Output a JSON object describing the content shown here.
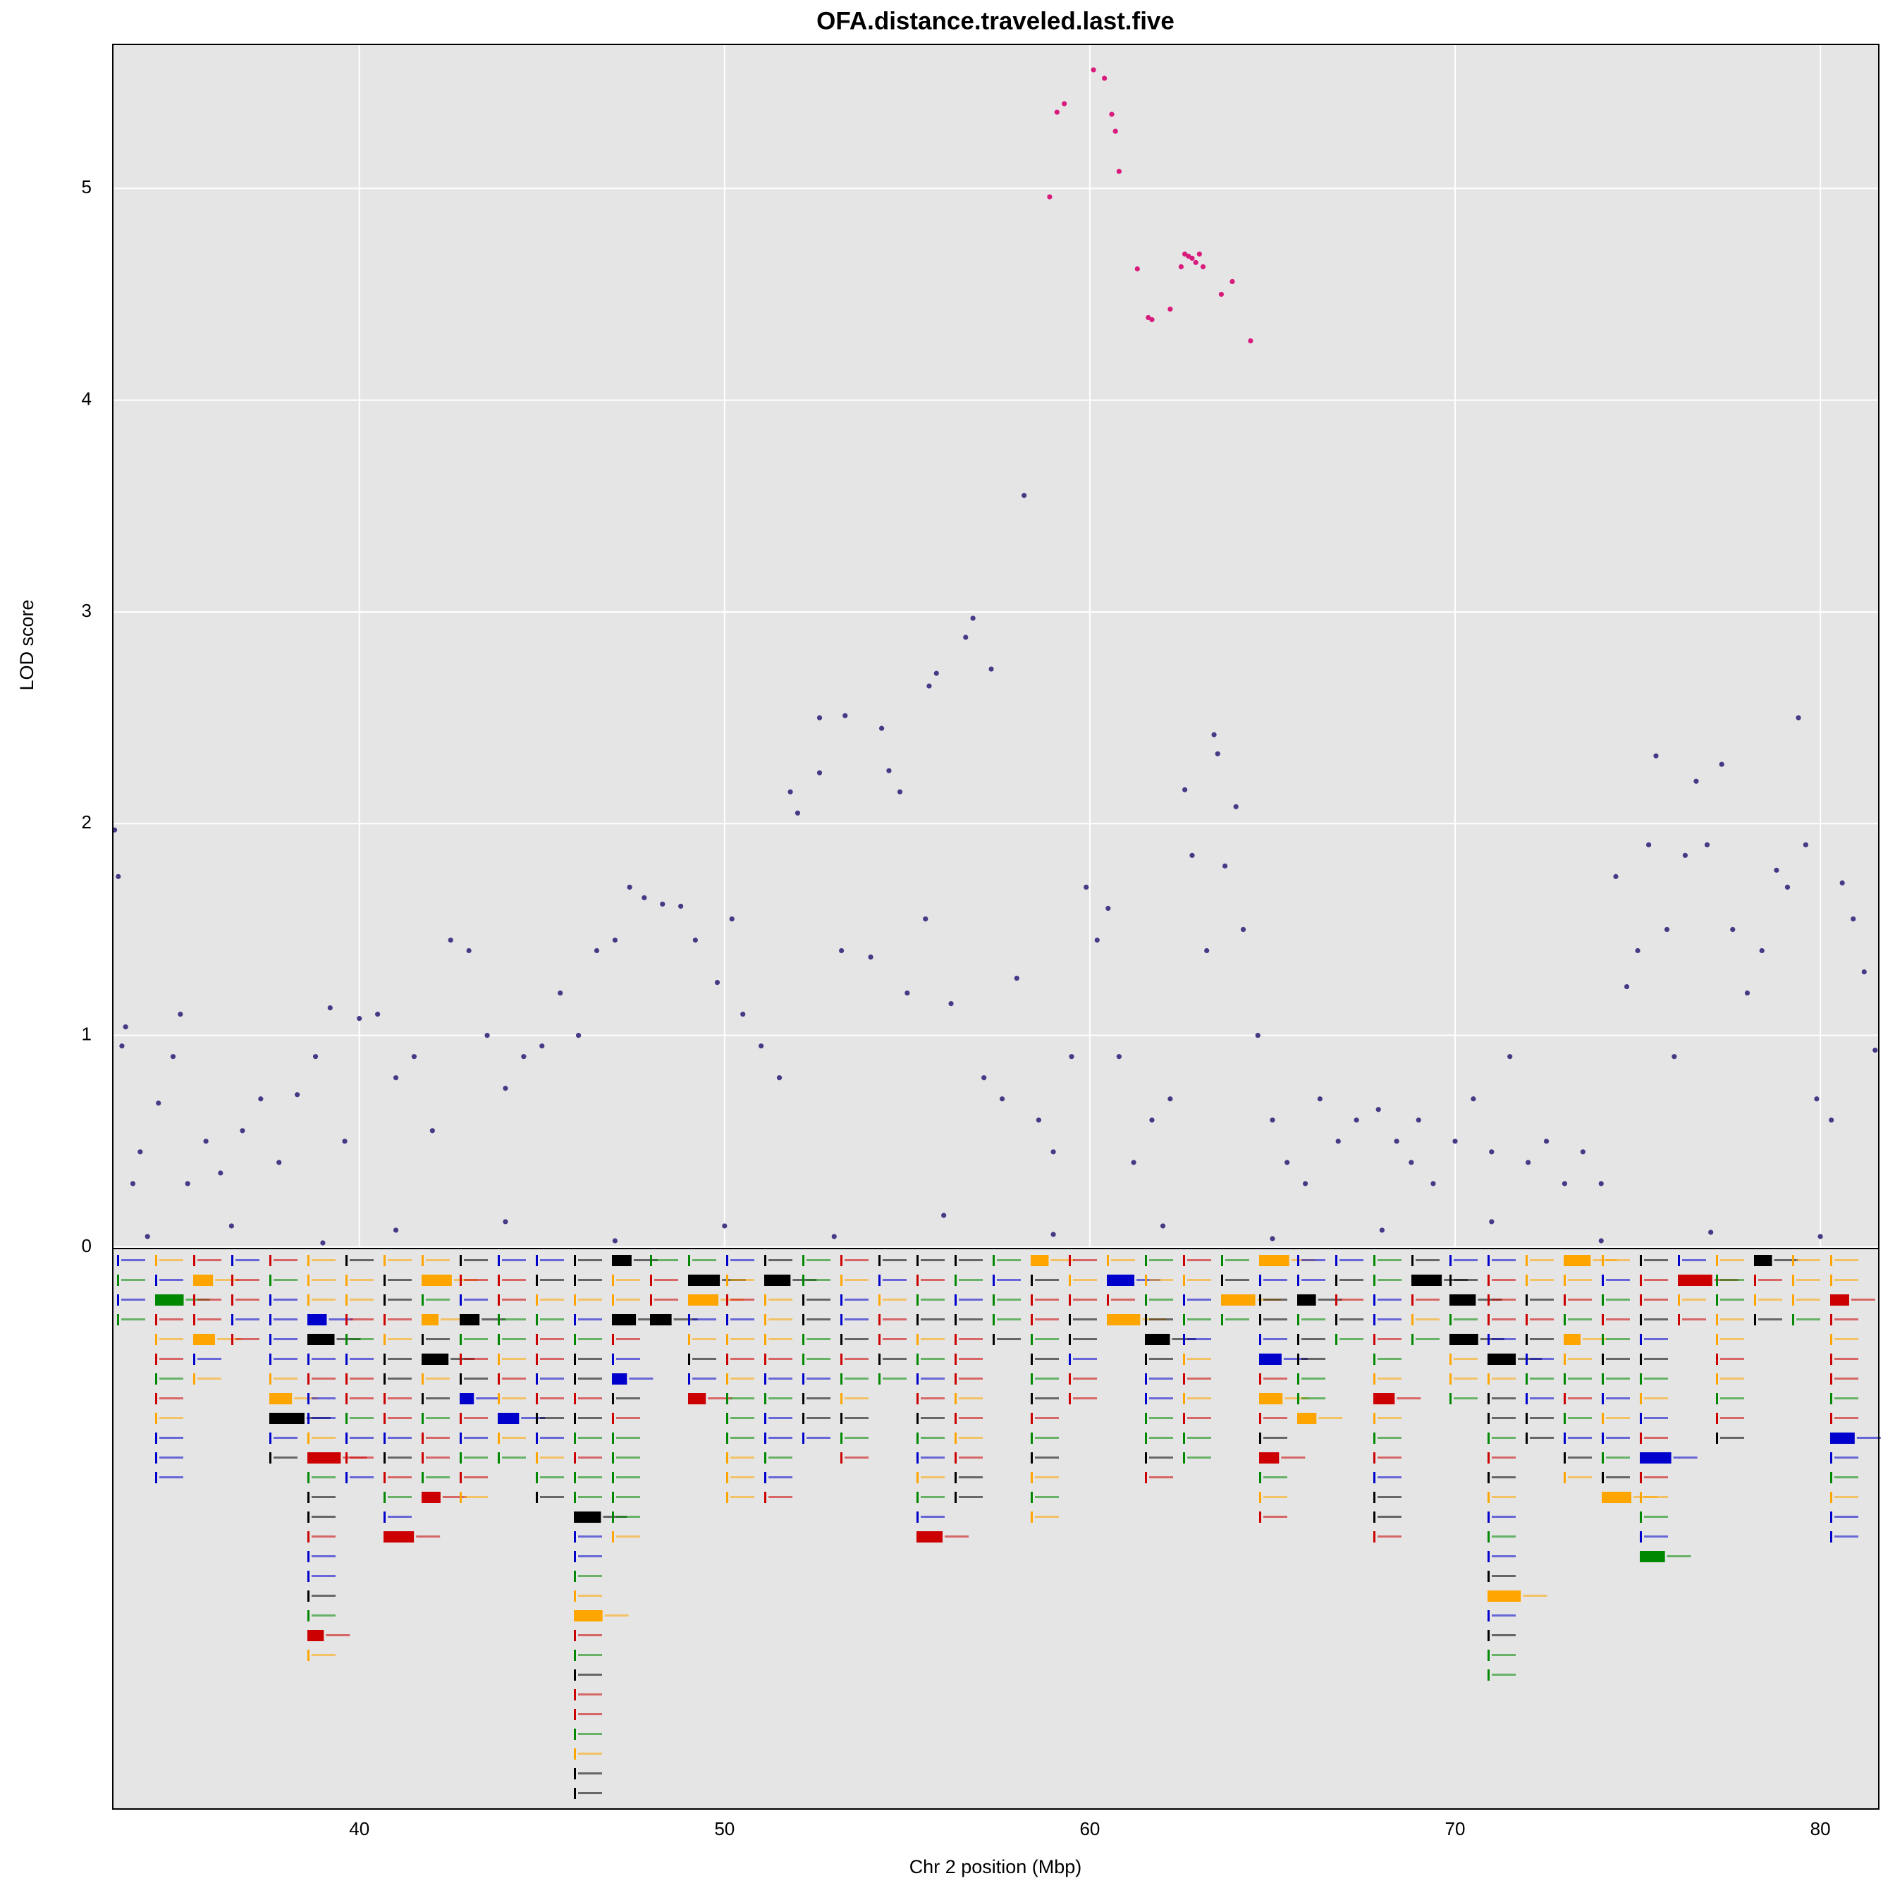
{
  "chart_data": {
    "type": "scatter",
    "title": "OFA.distance.traveled.last.five",
    "xlabel": "Chr 2 position (Mbp)",
    "ylabel": "LOD score",
    "xlim": [
      33.25,
      81.6
    ],
    "ylim": [
      0,
      5.68
    ],
    "xticks": [
      40,
      50,
      60,
      70,
      80
    ],
    "yticks": [
      0,
      1,
      2,
      3,
      4,
      5
    ],
    "grid": true,
    "series": [
      {
        "color": "#463A86",
        "x": [
          33.3,
          33.4,
          33.5,
          33.6,
          33.8,
          34.0,
          34.5,
          34.9,
          35.1,
          35.3,
          35.8,
          36.2,
          36.8,
          37.3,
          37.8,
          38.3,
          38.8,
          39.2,
          39.6,
          40.0,
          40.5,
          41.0,
          41.5,
          42.0,
          42.5,
          43.0,
          43.5,
          44.0,
          44.5,
          45.0,
          45.5,
          46.0,
          46.5,
          47.0,
          47.4,
          47.8,
          48.3,
          48.8,
          49.2,
          49.8,
          50.2,
          50.5,
          51.0,
          51.5,
          51.8,
          52.0,
          52.6,
          52.6,
          53.3,
          53.2,
          54.0,
          54.3,
          54.5,
          54.8,
          55.0,
          55.5,
          55.6,
          55.8,
          56.2,
          56.6,
          56.8,
          57.1,
          57.3,
          57.6,
          58.0,
          58.2,
          58.6,
          59.0,
          59.5,
          59.9,
          60.2,
          60.5,
          60.8,
          61.2,
          61.7,
          62.2,
          62.6,
          62.8,
          63.2,
          63.4,
          63.5,
          63.7,
          64.0,
          64.2,
          64.6,
          65.0,
          65.4,
          65.9,
          66.3,
          66.8,
          67.3,
          67.9,
          68.4,
          68.8,
          69.0,
          69.4,
          70.0,
          70.5,
          71.0,
          71.5,
          72.0,
          72.5,
          73.0,
          73.5,
          74.0,
          74.4,
          74.7,
          75.0,
          75.3,
          75.5,
          75.8,
          76.0,
          76.3,
          76.6,
          76.9,
          77.3,
          77.6,
          78.0,
          78.4,
          78.8,
          79.1,
          79.4,
          79.6,
          79.9,
          80.3,
          80.6,
          80.9,
          81.2,
          81.5,
          34.2,
          36.5,
          39.0,
          41.0,
          44.0,
          47.0,
          50.0,
          53.0,
          56.0,
          59.0,
          62.0,
          65.0,
          68.0,
          71.0,
          74.0,
          77.0,
          80.0
        ],
        "values": [
          1.97,
          1.75,
          0.95,
          1.04,
          0.3,
          0.45,
          0.68,
          0.9,
          1.1,
          0.3,
          0.5,
          0.35,
          0.55,
          0.7,
          0.4,
          0.72,
          0.9,
          1.13,
          0.5,
          1.08,
          1.1,
          0.8,
          0.9,
          0.55,
          1.45,
          1.4,
          1.0,
          0.75,
          0.9,
          0.95,
          1.2,
          1.0,
          1.4,
          1.45,
          1.7,
          1.65,
          1.62,
          1.61,
          1.45,
          1.25,
          1.55,
          1.1,
          0.95,
          0.8,
          2.15,
          2.05,
          2.5,
          2.24,
          2.51,
          1.4,
          1.37,
          2.45,
          2.25,
          2.15,
          1.2,
          1.55,
          2.65,
          2.71,
          1.15,
          2.88,
          2.97,
          0.8,
          2.73,
          0.7,
          1.27,
          3.55,
          0.6,
          0.45,
          0.9,
          1.7,
          1.45,
          1.6,
          0.9,
          0.4,
          0.6,
          0.7,
          2.16,
          1.85,
          1.4,
          2.42,
          2.33,
          1.8,
          2.08,
          1.5,
          1.0,
          0.6,
          0.4,
          0.3,
          0.7,
          0.5,
          0.6,
          0.65,
          0.5,
          0.4,
          0.6,
          0.3,
          0.5,
          0.7,
          0.45,
          0.9,
          0.4,
          0.5,
          0.3,
          0.45,
          0.3,
          1.75,
          1.23,
          1.4,
          1.9,
          2.32,
          1.5,
          0.9,
          1.85,
          2.2,
          1.9,
          2.28,
          1.5,
          1.2,
          1.4,
          1.78,
          1.7,
          2.5,
          1.9,
          0.7,
          0.6,
          1.72,
          1.55,
          1.3,
          0.93,
          0.05,
          0.1,
          0.02,
          0.08,
          0.12,
          0.03,
          0.1,
          0.05,
          0.15,
          0.06,
          0.1,
          0.04,
          0.08,
          0.12,
          0.03,
          0.07,
          0.05
        ]
      },
      {
        "color": "#D81B7C",
        "x": [
          58.9,
          59.1,
          59.3,
          60.1,
          60.4,
          60.6,
          60.7,
          60.8,
          61.3,
          61.6,
          61.7,
          62.2,
          62.5,
          62.6,
          62.7,
          62.8,
          62.9,
          63.0,
          63.1,
          63.6,
          63.9,
          64.4
        ],
        "values": [
          4.96,
          5.36,
          5.4,
          5.56,
          5.52,
          5.35,
          5.27,
          5.08,
          4.62,
          4.39,
          4.38,
          4.43,
          4.63,
          4.69,
          4.68,
          4.67,
          4.65,
          4.69,
          4.63,
          4.5,
          4.56,
          4.28
        ]
      }
    ]
  }
}
